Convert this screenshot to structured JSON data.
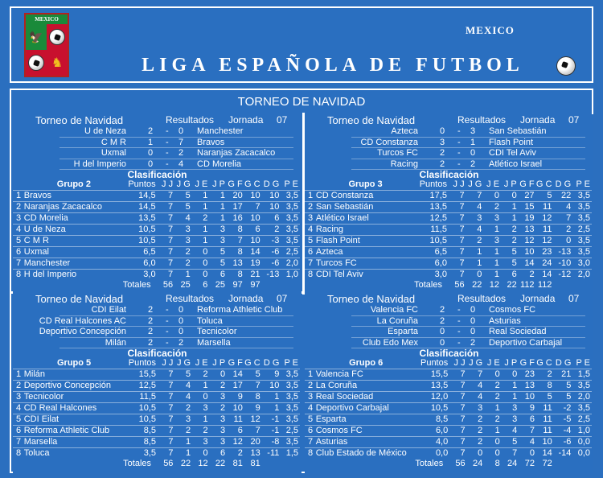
{
  "header": {
    "country": "MEXICO",
    "title": "LIGA ESPAÑOLA DE FUTBOL",
    "logo_text": "MEXICO",
    "logo_icon": "mexico-crest-icon",
    "ball_icon": "soccer-ball-icon"
  },
  "tournament": {
    "title": "TORNEO DE NAVIDAD"
  },
  "labels": {
    "torneo": "Torneo de Navidad",
    "resultados": "Resultados",
    "jornada": "Jornada",
    "clasificacion": "Clasificación",
    "totales": "Totales",
    "cols": [
      "Puntos",
      "J J",
      "J G",
      "J E",
      "J P",
      "G F",
      "G C",
      "D G",
      "P E"
    ]
  },
  "groups": [
    {
      "name": "Grupo 2",
      "jornada": "07",
      "matches": [
        {
          "home": "U de Neza",
          "hs": "2",
          "as": "0",
          "away": "Manchester"
        },
        {
          "home": "C M R",
          "hs": "1",
          "as": "7",
          "away": "Bravos"
        },
        {
          "home": "Uxmal",
          "hs": "0",
          "as": "2",
          "away": "Naranjas Zacacalco"
        },
        {
          "home": "H del Imperio",
          "hs": "0",
          "as": "4",
          "away": "CD Morelia"
        }
      ],
      "standings": [
        {
          "pos": "1",
          "team": "Bravos",
          "pts": "14,5",
          "jj": "7",
          "jg": "5",
          "je": "1",
          "jp": "1",
          "gf": "20",
          "gc": "10",
          "dg": "10",
          "pe": "3,5"
        },
        {
          "pos": "2",
          "team": "Naranjas Zacacalco",
          "pts": "14,5",
          "jj": "7",
          "jg": "5",
          "je": "1",
          "jp": "1",
          "gf": "17",
          "gc": "7",
          "dg": "10",
          "pe": "3,5"
        },
        {
          "pos": "3",
          "team": "CD Morelia",
          "pts": "13,5",
          "jj": "7",
          "jg": "4",
          "je": "2",
          "jp": "1",
          "gf": "16",
          "gc": "10",
          "dg": "6",
          "pe": "3,5"
        },
        {
          "pos": "4",
          "team": "U de Neza",
          "pts": "10,5",
          "jj": "7",
          "jg": "3",
          "je": "1",
          "jp": "3",
          "gf": "8",
          "gc": "6",
          "dg": "2",
          "pe": "3,5"
        },
        {
          "pos": "5",
          "team": "C M R",
          "pts": "10,5",
          "jj": "7",
          "jg": "3",
          "je": "1",
          "jp": "3",
          "gf": "7",
          "gc": "10",
          "dg": "-3",
          "pe": "3,5"
        },
        {
          "pos": "6",
          "team": "Uxmal",
          "pts": "6,5",
          "jj": "7",
          "jg": "2",
          "je": "0",
          "jp": "5",
          "gf": "8",
          "gc": "14",
          "dg": "-6",
          "pe": "2,5"
        },
        {
          "pos": "7",
          "team": "Manchester",
          "pts": "6,0",
          "jj": "7",
          "jg": "2",
          "je": "0",
          "jp": "5",
          "gf": "13",
          "gc": "19",
          "dg": "-6",
          "pe": "2,0"
        },
        {
          "pos": "8",
          "team": "H del Imperio",
          "pts": "3,0",
          "jj": "7",
          "jg": "1",
          "je": "0",
          "jp": "6",
          "gf": "8",
          "gc": "21",
          "dg": "-13",
          "pe": "1,0"
        }
      ],
      "totals": {
        "jj": "56",
        "jg": "25",
        "je": "6",
        "jp": "25",
        "gf": "97",
        "gc": "97"
      }
    },
    {
      "name": "Grupo 3",
      "jornada": "07",
      "matches": [
        {
          "home": "Azteca",
          "hs": "0",
          "as": "3",
          "away": "San Sebastián"
        },
        {
          "home": "CD Constanza",
          "hs": "3",
          "as": "1",
          "away": "Flash Point"
        },
        {
          "home": "Turcos FC",
          "hs": "2",
          "as": "0",
          "away": "CDI Tel Aviv"
        },
        {
          "home": "Racing",
          "hs": "2",
          "as": "2",
          "away": "Atlético Israel"
        }
      ],
      "standings": [
        {
          "pos": "1",
          "team": "CD Constanza",
          "pts": "17,5",
          "jj": "7",
          "jg": "7",
          "je": "0",
          "jp": "0",
          "gf": "27",
          "gc": "5",
          "dg": "22",
          "pe": "3,5"
        },
        {
          "pos": "2",
          "team": "San Sebastián",
          "pts": "13,5",
          "jj": "7",
          "jg": "4",
          "je": "2",
          "jp": "1",
          "gf": "15",
          "gc": "11",
          "dg": "4",
          "pe": "3,5"
        },
        {
          "pos": "3",
          "team": "Atlético Israel",
          "pts": "12,5",
          "jj": "7",
          "jg": "3",
          "je": "3",
          "jp": "1",
          "gf": "19",
          "gc": "12",
          "dg": "7",
          "pe": "3,5"
        },
        {
          "pos": "4",
          "team": "Racing",
          "pts": "11,5",
          "jj": "7",
          "jg": "4",
          "je": "1",
          "jp": "2",
          "gf": "13",
          "gc": "11",
          "dg": "2",
          "pe": "2,5"
        },
        {
          "pos": "5",
          "team": "Flash Point",
          "pts": "10,5",
          "jj": "7",
          "jg": "2",
          "je": "3",
          "jp": "2",
          "gf": "12",
          "gc": "12",
          "dg": "0",
          "pe": "3,5"
        },
        {
          "pos": "6",
          "team": "Azteca",
          "pts": "6,5",
          "jj": "7",
          "jg": "1",
          "je": "1",
          "jp": "5",
          "gf": "10",
          "gc": "23",
          "dg": "-13",
          "pe": "3,5"
        },
        {
          "pos": "7",
          "team": "Turcos FC",
          "pts": "6,0",
          "jj": "7",
          "jg": "1",
          "je": "1",
          "jp": "5",
          "gf": "14",
          "gc": "24",
          "dg": "-10",
          "pe": "3,0"
        },
        {
          "pos": "8",
          "team": "CDI Tel Aviv",
          "pts": "3,0",
          "jj": "7",
          "jg": "0",
          "je": "1",
          "jp": "6",
          "gf": "2",
          "gc": "14",
          "dg": "-12",
          "pe": "2,0"
        }
      ],
      "totals": {
        "jj": "56",
        "jg": "22",
        "je": "12",
        "jp": "22",
        "gf": "112",
        "gc": "112"
      }
    },
    {
      "name": "Grupo 5",
      "jornada": "07",
      "matches": [
        {
          "home": "CDI Eilat",
          "hs": "2",
          "as": "0",
          "away": "Reforma Athletic Club"
        },
        {
          "home": "CD Real Halcones AC",
          "hs": "2",
          "as": "0",
          "away": "Toluca"
        },
        {
          "home": "Deportivo Concepción",
          "hs": "2",
          "as": "0",
          "away": "Tecnicolor"
        },
        {
          "home": "Milán",
          "hs": "2",
          "as": "2",
          "away": "Marsella"
        }
      ],
      "standings": [
        {
          "pos": "1",
          "team": "Milán",
          "pts": "15,5",
          "jj": "7",
          "jg": "5",
          "je": "2",
          "jp": "0",
          "gf": "14",
          "gc": "5",
          "dg": "9",
          "pe": "3,5"
        },
        {
          "pos": "2",
          "team": "Deportivo Concepción",
          "pts": "12,5",
          "jj": "7",
          "jg": "4",
          "je": "1",
          "jp": "2",
          "gf": "17",
          "gc": "7",
          "dg": "10",
          "pe": "3,5"
        },
        {
          "pos": "3",
          "team": "Tecnicolor",
          "pts": "11,5",
          "jj": "7",
          "jg": "4",
          "je": "0",
          "jp": "3",
          "gf": "9",
          "gc": "8",
          "dg": "1",
          "pe": "3,5"
        },
        {
          "pos": "4",
          "team": "CD Real Halcones",
          "pts": "10,5",
          "jj": "7",
          "jg": "2",
          "je": "3",
          "jp": "2",
          "gf": "10",
          "gc": "9",
          "dg": "1",
          "pe": "3,5"
        },
        {
          "pos": "5",
          "team": "CDI Eilat",
          "pts": "10,5",
          "jj": "7",
          "jg": "3",
          "je": "1",
          "jp": "3",
          "gf": "11",
          "gc": "12",
          "dg": "-1",
          "pe": "3,5"
        },
        {
          "pos": "6",
          "team": "Reforma Athletic Club",
          "pts": "8,5",
          "jj": "7",
          "jg": "2",
          "je": "2",
          "jp": "3",
          "gf": "6",
          "gc": "7",
          "dg": "-1",
          "pe": "2,5"
        },
        {
          "pos": "7",
          "team": "Marsella",
          "pts": "8,5",
          "jj": "7",
          "jg": "1",
          "je": "3",
          "jp": "3",
          "gf": "12",
          "gc": "20",
          "dg": "-8",
          "pe": "3,5"
        },
        {
          "pos": "8",
          "team": "Toluca",
          "pts": "3,5",
          "jj": "7",
          "jg": "1",
          "je": "0",
          "jp": "6",
          "gf": "2",
          "gc": "13",
          "dg": "-11",
          "pe": "1,5"
        }
      ],
      "totals": {
        "jj": "56",
        "jg": "22",
        "je": "12",
        "jp": "22",
        "gf": "81",
        "gc": "81"
      }
    },
    {
      "name": "Grupo 6",
      "jornada": "07",
      "matches": [
        {
          "home": "Valencia FC",
          "hs": "2",
          "as": "0",
          "away": "Cosmos FC"
        },
        {
          "home": "La Coruña",
          "hs": "2",
          "as": "0",
          "away": "Asturias"
        },
        {
          "home": "Esparta",
          "hs": "0",
          "as": "0",
          "away": "Real Sociedad"
        },
        {
          "home": "Club Edo Mex",
          "hs": "0",
          "as": "2",
          "away": "Deportivo Carbajal"
        }
      ],
      "standings": [
        {
          "pos": "1",
          "team": "Valencia FC",
          "pts": "15,5",
          "jj": "7",
          "jg": "7",
          "je": "0",
          "jp": "0",
          "gf": "23",
          "gc": "2",
          "dg": "21",
          "pe": "1,5"
        },
        {
          "pos": "2",
          "team": "La Coruña",
          "pts": "13,5",
          "jj": "7",
          "jg": "4",
          "je": "2",
          "jp": "1",
          "gf": "13",
          "gc": "8",
          "dg": "5",
          "pe": "3,5"
        },
        {
          "pos": "3",
          "team": "Real Sociedad",
          "pts": "12,0",
          "jj": "7",
          "jg": "4",
          "je": "2",
          "jp": "1",
          "gf": "10",
          "gc": "5",
          "dg": "5",
          "pe": "2,0"
        },
        {
          "pos": "4",
          "team": "Deportivo Carbajal",
          "pts": "10,5",
          "jj": "7",
          "jg": "3",
          "je": "1",
          "jp": "3",
          "gf": "9",
          "gc": "11",
          "dg": "-2",
          "pe": "3,5"
        },
        {
          "pos": "5",
          "team": "Esparta",
          "pts": "8,5",
          "jj": "7",
          "jg": "2",
          "je": "2",
          "jp": "3",
          "gf": "6",
          "gc": "11",
          "dg": "-5",
          "pe": "2,5"
        },
        {
          "pos": "6",
          "team": "Cosmos FC",
          "pts": "6,0",
          "jj": "7",
          "jg": "2",
          "je": "1",
          "jp": "4",
          "gf": "7",
          "gc": "11",
          "dg": "-4",
          "pe": "1,0"
        },
        {
          "pos": "7",
          "team": "Asturias",
          "pts": "4,0",
          "jj": "7",
          "jg": "2",
          "je": "0",
          "jp": "5",
          "gf": "4",
          "gc": "10",
          "dg": "-6",
          "pe": "0,0"
        },
        {
          "pos": "8",
          "team": "Club Estado de México",
          "pts": "0,0",
          "jj": "7",
          "jg": "0",
          "je": "0",
          "jp": "7",
          "gf": "0",
          "gc": "14",
          "dg": "-14",
          "pe": "0,0"
        }
      ],
      "totals": {
        "jj": "56",
        "jg": "24",
        "je": "8",
        "jp": "24",
        "gf": "72",
        "gc": "72"
      }
    }
  ]
}
